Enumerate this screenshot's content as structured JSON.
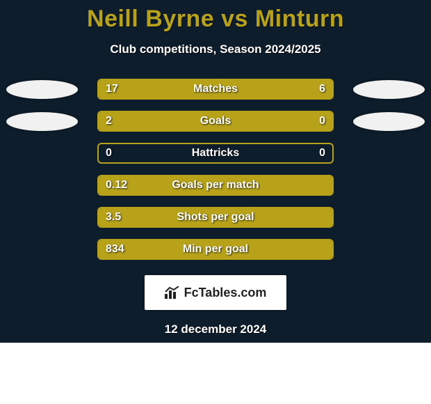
{
  "title": "Neill Byrne vs Minturn",
  "subtitle": "Club competitions, Season 2024/2025",
  "date": "12 december 2024",
  "colors": {
    "background": "#0e1d2b",
    "accent": "#b7a21a",
    "oval": "#f1f1f1",
    "text": "#ffffff",
    "logo_bg": "#ffffff"
  },
  "logo_text": "FcTables.com",
  "stats": [
    {
      "metric": "Matches",
      "left_val": "17",
      "right_val": "6",
      "left_fill_pct": 70,
      "right_fill_pct": 30,
      "show_ovals": true
    },
    {
      "metric": "Goals",
      "left_val": "2",
      "right_val": "0",
      "left_fill_pct": 78,
      "right_fill_pct": 22,
      "show_ovals": true
    },
    {
      "metric": "Hattricks",
      "left_val": "0",
      "right_val": "0",
      "left_fill_pct": 0,
      "right_fill_pct": 0,
      "show_ovals": false
    },
    {
      "metric": "Goals per match",
      "left_val": "0.12",
      "right_val": "",
      "left_fill_pct": 100,
      "right_fill_pct": 0,
      "show_ovals": false
    },
    {
      "metric": "Shots per goal",
      "left_val": "3.5",
      "right_val": "",
      "left_fill_pct": 100,
      "right_fill_pct": 0,
      "show_ovals": false
    },
    {
      "metric": "Min per goal",
      "left_val": "834",
      "right_val": "",
      "left_fill_pct": 100,
      "right_fill_pct": 0,
      "show_ovals": false
    }
  ]
}
